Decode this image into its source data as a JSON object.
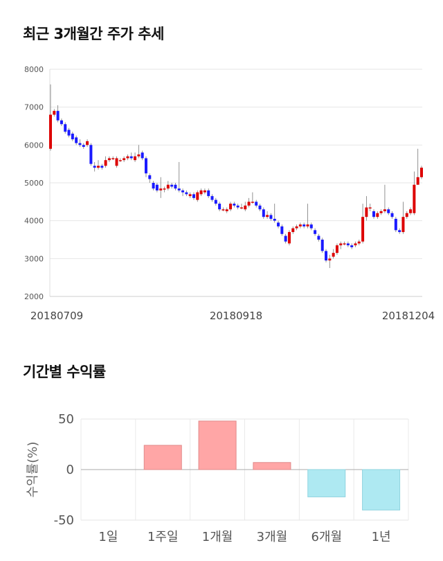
{
  "sections": {
    "price_title": "최근 3개월간 주가 추세",
    "return_title": "기간별 수익률"
  },
  "chart_data": [
    {
      "type": "candlestick",
      "title": "최근 3개월간 주가 추세",
      "ylim": [
        2000,
        8000
      ],
      "y_ticks": [
        "8000",
        "7000",
        "6000",
        "5000",
        "4000",
        "3000",
        "2000"
      ],
      "x_tick_labels": [
        "20180709",
        "20180918",
        "20181204"
      ],
      "up_color": "#dd0000",
      "down_color": "#1a1aff",
      "grid": true,
      "candles": [
        [
          5900,
          6800,
          7600,
          5850
        ],
        [
          6800,
          6900,
          6950,
          6750
        ],
        [
          6900,
          6650,
          7050,
          6600
        ],
        [
          6650,
          6550,
          6700,
          6500
        ],
        [
          6550,
          6350,
          6600,
          6300
        ],
        [
          6400,
          6250,
          6450,
          6200
        ],
        [
          6300,
          6150,
          6350,
          6100
        ],
        [
          6200,
          6050,
          6250,
          6000
        ],
        [
          6050,
          6000,
          6150,
          5950
        ],
        [
          6000,
          5950,
          6050,
          5900
        ],
        [
          6000,
          6100,
          6150,
          5950
        ],
        [
          6000,
          5500,
          6050,
          5450
        ],
        [
          5450,
          5400,
          5550,
          5300
        ],
        [
          5400,
          5450,
          5600,
          5350
        ],
        [
          5450,
          5400,
          5500,
          5350
        ],
        [
          5450,
          5600,
          5700,
          5400
        ],
        [
          5600,
          5650,
          5700,
          5550
        ],
        [
          5650,
          5650,
          5700,
          5600
        ],
        [
          5450,
          5650,
          5700,
          5400
        ],
        [
          5600,
          5600,
          5650,
          5550
        ],
        [
          5600,
          5650,
          5700,
          5550
        ],
        [
          5650,
          5700,
          5750,
          5600
        ],
        [
          5700,
          5650,
          5800,
          5600
        ],
        [
          5600,
          5700,
          5800,
          5550
        ],
        [
          5700,
          5750,
          6000,
          5650
        ],
        [
          5800,
          5650,
          5850,
          5600
        ],
        [
          5650,
          5250,
          5700,
          5150
        ],
        [
          5200,
          5100,
          5250,
          5000
        ],
        [
          5000,
          4850,
          5050,
          4800
        ],
        [
          4950,
          4800,
          5000,
          4750
        ],
        [
          4800,
          4850,
          5150,
          4600
        ],
        [
          4850,
          4850,
          4900,
          4750
        ],
        [
          4850,
          4950,
          5050,
          4800
        ],
        [
          4950,
          4900,
          5000,
          4850
        ],
        [
          4950,
          4850,
          5000,
          4800
        ],
        [
          4850,
          4800,
          5550,
          4750
        ],
        [
          4800,
          4750,
          4850,
          4650
        ],
        [
          4750,
          4700,
          4800,
          4650
        ],
        [
          4650,
          4700,
          4750,
          4600
        ],
        [
          4700,
          4600,
          4750,
          4550
        ],
        [
          4550,
          4750,
          4800,
          4500
        ],
        [
          4700,
          4800,
          4850,
          4650
        ],
        [
          4750,
          4800,
          4850,
          4700
        ],
        [
          4800,
          4650,
          4850,
          4600
        ],
        [
          4650,
          4550,
          4700,
          4500
        ],
        [
          4550,
          4450,
          4600,
          4400
        ],
        [
          4450,
          4300,
          4500,
          4250
        ],
        [
          4300,
          4300,
          4350,
          4250
        ],
        [
          4250,
          4300,
          4350,
          4200
        ],
        [
          4300,
          4450,
          4500,
          4250
        ],
        [
          4450,
          4400,
          4500,
          4350
        ],
        [
          4400,
          4350,
          4450,
          4300
        ],
        [
          4350,
          4350,
          4450,
          4300
        ],
        [
          4300,
          4400,
          4500,
          4250
        ],
        [
          4400,
          4500,
          4600,
          4350
        ],
        [
          4500,
          4500,
          4750,
          4450
        ],
        [
          4500,
          4400,
          4550,
          4350
        ],
        [
          4400,
          4300,
          4450,
          4250
        ],
        [
          4300,
          4100,
          4350,
          4050
        ],
        [
          4100,
          4150,
          4250,
          4050
        ],
        [
          4150,
          4050,
          4200,
          4000
        ],
        [
          4050,
          4000,
          4450,
          3950
        ],
        [
          3950,
          3850,
          4000,
          3800
        ],
        [
          3850,
          3650,
          3900,
          3600
        ],
        [
          3600,
          3450,
          3650,
          3400
        ],
        [
          3400,
          3700,
          3750,
          3350
        ],
        [
          3700,
          3800,
          3850,
          3650
        ],
        [
          3800,
          3850,
          3900,
          3750
        ],
        [
          3850,
          3900,
          3950,
          3800
        ],
        [
          3900,
          3850,
          3950,
          3800
        ],
        [
          3850,
          3900,
          4450,
          3800
        ],
        [
          3900,
          3800,
          3950,
          3750
        ],
        [
          3750,
          3650,
          3800,
          3600
        ],
        [
          3600,
          3500,
          3650,
          3450
        ],
        [
          3500,
          3200,
          3550,
          3150
        ],
        [
          3200,
          2950,
          3250,
          2900
        ],
        [
          2950,
          3000,
          3100,
          2750
        ],
        [
          3050,
          3150,
          3250,
          3000
        ],
        [
          3150,
          3350,
          3400,
          3100
        ],
        [
          3350,
          3400,
          3450,
          3250
        ],
        [
          3400,
          3400,
          3450,
          3350
        ],
        [
          3400,
          3350,
          3450,
          3300
        ],
        [
          3350,
          3300,
          3400,
          3250
        ],
        [
          3350,
          3400,
          3450,
          3300
        ],
        [
          3400,
          3450,
          3500,
          3350
        ],
        [
          3450,
          4100,
          4450,
          3400
        ],
        [
          4100,
          4350,
          4650,
          4000
        ],
        [
          4350,
          4350,
          4450,
          4250
        ],
        [
          4250,
          4100,
          4300,
          4050
        ],
        [
          4100,
          4200,
          4250,
          4050
        ],
        [
          4200,
          4250,
          4300,
          4150
        ],
        [
          4250,
          4300,
          4950,
          4200
        ],
        [
          4300,
          4200,
          4350,
          4150
        ],
        [
          4200,
          4100,
          4250,
          4050
        ],
        [
          4050,
          3750,
          4100,
          3700
        ],
        [
          3750,
          3700,
          3800,
          3650
        ],
        [
          3700,
          4100,
          4500,
          3650
        ],
        [
          4100,
          4200,
          4250,
          4050
        ],
        [
          4200,
          4300,
          4350,
          4150
        ],
        [
          4200,
          4950,
          5300,
          4150
        ],
        [
          4950,
          5150,
          5900,
          4950
        ],
        [
          5150,
          5400,
          5450,
          5100
        ]
      ]
    },
    {
      "type": "bar",
      "title": "기간별 수익률",
      "ylabel": "수익률(%)",
      "ylim": [
        -50,
        50
      ],
      "y_ticks": [
        "50",
        "0",
        "-50"
      ],
      "categories": [
        "1일",
        "1주일",
        "1개월",
        "3개월",
        "6개월",
        "1년"
      ],
      "values": [
        0.5,
        24,
        48,
        7,
        -27,
        -40
      ],
      "positive_color": "#ffa6a6",
      "negative_color": "#aee9f2",
      "grid": true
    }
  ]
}
